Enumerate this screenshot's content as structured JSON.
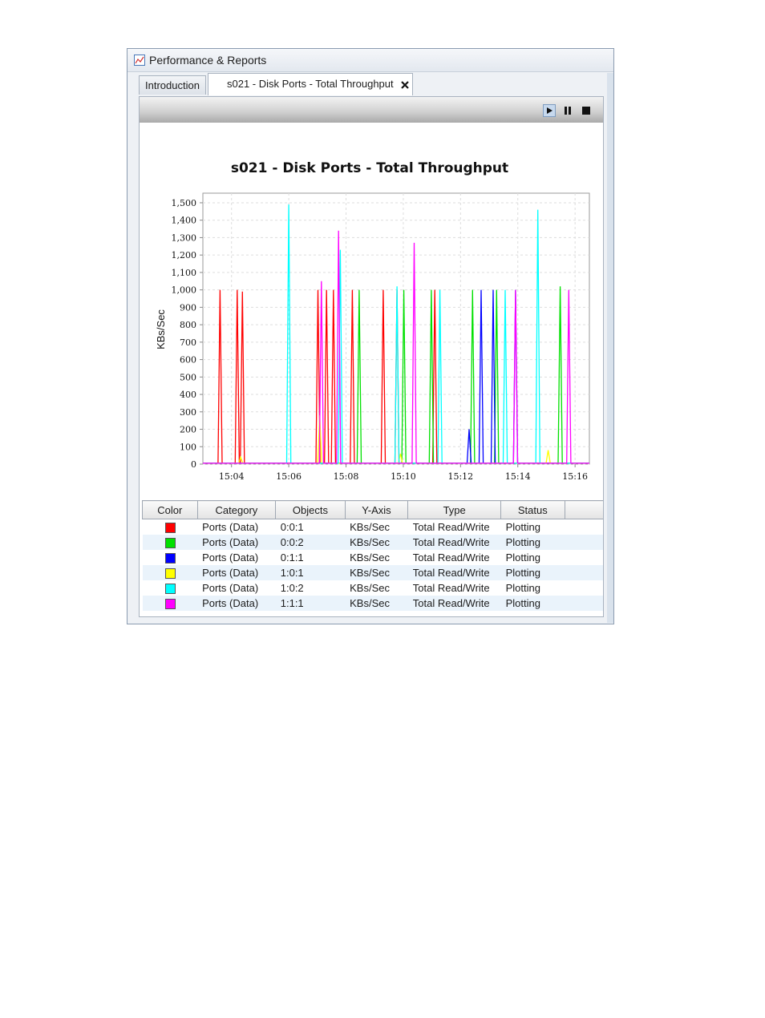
{
  "window": {
    "title": "Performance & Reports",
    "icon": "chart-icon"
  },
  "tabs": [
    {
      "label": "Introduction",
      "active": false
    },
    {
      "label": "s021 - Disk Ports - Total Throughput",
      "active": true,
      "close_icon": "close-icon"
    }
  ],
  "toolbar": {
    "play_icon": "play-icon",
    "pause_icon": "pause-icon",
    "stop_icon": "stop-icon"
  },
  "chart_data": {
    "type": "line",
    "title": "s021 - Disk Ports - Total Throughput",
    "xlabel": "",
    "ylabel": "KBs/Sec",
    "xlim": [
      15.05,
      15.275
    ],
    "ylim": [
      0,
      1500
    ],
    "x_ticks": [
      "15:04",
      "15:06",
      "15:08",
      "15:10",
      "15:12",
      "15:14",
      "15:16"
    ],
    "y_ticks": [
      "0",
      "100",
      "200",
      "300",
      "400",
      "500",
      "600",
      "700",
      "800",
      "900",
      "1,000",
      "1,100",
      "1,200",
      "1,300",
      "1,400",
      "1,500"
    ],
    "grid": true,
    "series": [
      {
        "name": "0:0:1",
        "color": "#ff0000",
        "spikes": [
          [
            15.06,
            1000
          ],
          [
            15.07,
            1000
          ],
          [
            15.073,
            990
          ],
          [
            15.117,
            1000
          ],
          [
            15.122,
            1000
          ],
          [
            15.126,
            1000
          ],
          [
            15.137,
            1000
          ],
          [
            15.155,
            1000
          ],
          [
            15.163,
            1000
          ],
          [
            15.185,
            1000
          ]
        ]
      },
      {
        "name": "0:0:2",
        "color": "#00e000",
        "spikes": [
          [
            15.141,
            1000
          ],
          [
            15.167,
            1000
          ],
          [
            15.183,
            1000
          ],
          [
            15.207,
            1000
          ],
          [
            15.221,
            1000
          ],
          [
            15.258,
            1020
          ]
        ]
      },
      {
        "name": "0:1:1",
        "color": "#0000ff",
        "spikes": [
          [
            15.205,
            200
          ],
          [
            15.212,
            1000
          ],
          [
            15.219,
            1000
          ],
          [
            15.232,
            1000
          ]
        ]
      },
      {
        "name": "1:0:1",
        "color": "#ffff00",
        "spikes": [
          [
            15.072,
            40
          ],
          [
            15.118,
            280
          ],
          [
            15.165,
            60
          ],
          [
            15.251,
            80
          ]
        ]
      },
      {
        "name": "1:0:2",
        "color": "#00ffff",
        "spikes": [
          [
            15.1,
            1490
          ],
          [
            15.13,
            1230
          ],
          [
            15.163,
            1020
          ],
          [
            15.188,
            1000
          ],
          [
            15.226,
            1000
          ],
          [
            15.245,
            1460
          ]
        ]
      },
      {
        "name": "1:1:1",
        "color": "#ff00ff",
        "spikes": [
          [
            15.119,
            1050
          ],
          [
            15.129,
            1340
          ],
          [
            15.173,
            1270
          ],
          [
            15.232,
            1000
          ],
          [
            15.263,
            1000
          ]
        ]
      }
    ]
  },
  "legend": {
    "headers": [
      "Color",
      "Category",
      "Objects",
      "Y-Axis",
      "Type",
      "Status"
    ],
    "rows": [
      {
        "color": "#ff0000",
        "category": "Ports (Data)",
        "object": "0:0:1",
        "yaxis": "KBs/Sec",
        "type": "Total Read/Write",
        "status": "Plotting"
      },
      {
        "color": "#00e000",
        "category": "Ports (Data)",
        "object": "0:0:2",
        "yaxis": "KBs/Sec",
        "type": "Total Read/Write",
        "status": "Plotting"
      },
      {
        "color": "#0000ff",
        "category": "Ports (Data)",
        "object": "0:1:1",
        "yaxis": "KBs/Sec",
        "type": "Total Read/Write",
        "status": "Plotting"
      },
      {
        "color": "#ffff00",
        "category": "Ports (Data)",
        "object": "1:0:1",
        "yaxis": "KBs/Sec",
        "type": "Total Read/Write",
        "status": "Plotting"
      },
      {
        "color": "#00ffff",
        "category": "Ports (Data)",
        "object": "1:0:2",
        "yaxis": "KBs/Sec",
        "type": "Total Read/Write",
        "status": "Plotting"
      },
      {
        "color": "#ff00ff",
        "category": "Ports (Data)",
        "object": "1:1:1",
        "yaxis": "KBs/Sec",
        "type": "Total Read/Write",
        "status": "Plotting"
      }
    ]
  }
}
